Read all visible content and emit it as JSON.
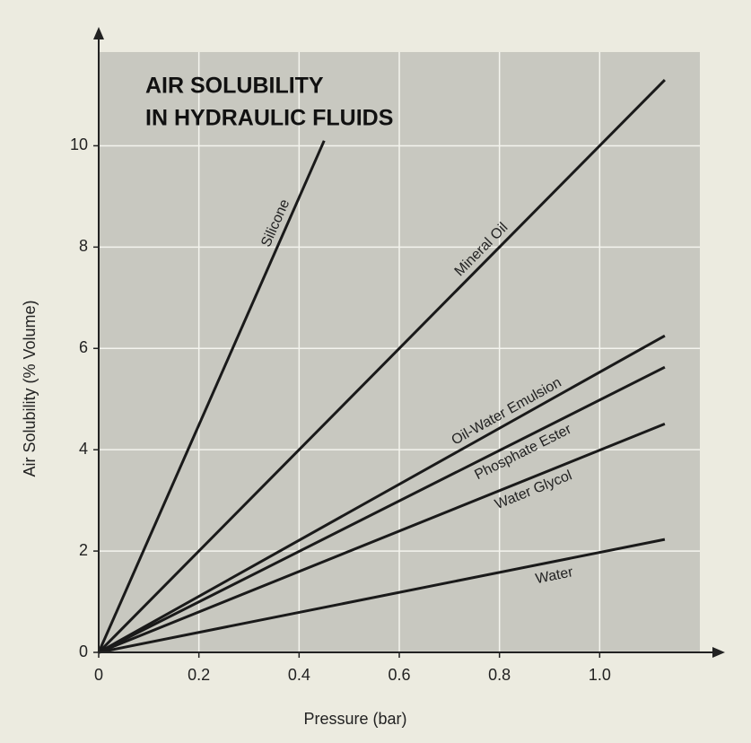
{
  "chart_data": {
    "type": "line",
    "title": [
      "AIR SOLUBILITY",
      "IN HYDRAULIC FLUIDS"
    ],
    "x_label": "Pressure (bar)",
    "y_label": "Air Solubility (% Volume)",
    "xlim": [
      0,
      1.2
    ],
    "ylim": [
      0,
      11.85
    ],
    "xticks": [
      0,
      0.2,
      0.4,
      0.6,
      {
        "value": 1,
        "label": "1.0"
      },
      0.8
    ],
    "yticks": [
      0,
      2,
      4,
      6,
      8,
      10
    ],
    "grid": true,
    "series": [
      {
        "name": "Silicone",
        "color": "#1a1a1a",
        "x": [
          0,
          0.45
        ],
        "values": [
          0,
          10.1
        ]
      },
      {
        "name": "Mineral Oil",
        "color": "#1a1a1a",
        "x": [
          0,
          1.13
        ],
        "values": [
          0,
          11.3
        ]
      },
      {
        "name": "Oil-Water Emulsion",
        "color": "#1a1a1a",
        "x": [
          0,
          1.13
        ],
        "values": [
          0,
          6.25
        ]
      },
      {
        "name": "Phosphate Ester",
        "color": "#1a1a1a",
        "x": [
          0,
          1.13
        ],
        "values": [
          0,
          5.63
        ]
      },
      {
        "name": "Water Glycol",
        "color": "#1a1a1a",
        "x": [
          0,
          1.13
        ],
        "values": [
          0,
          4.51
        ]
      },
      {
        "name": "Water",
        "color": "#1a1a1a",
        "x": [
          0,
          1.13
        ],
        "values": [
          0,
          2.23
        ]
      }
    ]
  }
}
